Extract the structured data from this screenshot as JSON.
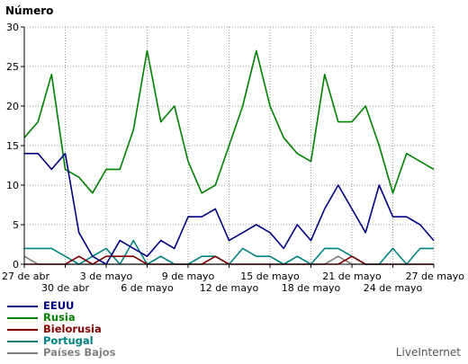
{
  "chart_data": {
    "type": "line",
    "ylabel": "Número",
    "ylim": [
      0,
      30
    ],
    "yticks": [
      0,
      5,
      10,
      15,
      20,
      25,
      30
    ],
    "grid": true,
    "legend_position": "bottom-left",
    "x": [
      "27 de abr",
      "28 de abr",
      "29 de abr",
      "30 de abr",
      "1 de mayo",
      "2 de mayo",
      "3 de mayo",
      "4 de mayo",
      "5 de mayo",
      "6 de mayo",
      "7 de mayo",
      "8 de mayo",
      "9 de mayo",
      "10 de mayo",
      "11 de mayo",
      "12 de mayo",
      "13 de mayo",
      "14 de mayo",
      "15 de mayo",
      "16 de mayo",
      "17 de mayo",
      "18 de mayo",
      "19 de mayo",
      "20 de mayo",
      "21 de mayo",
      "22 de mayo",
      "23 de mayo",
      "24 de mayo",
      "25 de mayo",
      "26 de mayo",
      "27 de mayo"
    ],
    "xtick_labels": [
      {
        "index": 0,
        "label": "27 de abr",
        "row": 1
      },
      {
        "index": 3,
        "label": "30 de abr",
        "row": 2
      },
      {
        "index": 6,
        "label": "3 de mayo",
        "row": 1
      },
      {
        "index": 9,
        "label": "6 de mayo",
        "row": 2
      },
      {
        "index": 12,
        "label": "9 de mayo",
        "row": 1
      },
      {
        "index": 15,
        "label": "12 de mayo",
        "row": 2
      },
      {
        "index": 18,
        "label": "15 de mayo",
        "row": 1
      },
      {
        "index": 21,
        "label": "18 de mayo",
        "row": 2
      },
      {
        "index": 24,
        "label": "21 de mayo",
        "row": 1
      },
      {
        "index": 27,
        "label": "24 de mayo",
        "row": 2
      },
      {
        "index": 30,
        "label": "27 de mayo",
        "row": 1
      }
    ],
    "series": [
      {
        "name": "EEUU",
        "color": "#000080",
        "values": [
          14,
          14,
          12,
          14,
          4,
          1,
          0,
          3,
          2,
          1,
          3,
          2,
          6,
          6,
          7,
          3,
          4,
          5,
          4,
          2,
          5,
          3,
          7,
          10,
          7,
          4,
          10,
          6,
          6,
          5,
          3
        ]
      },
      {
        "name": "Rusia",
        "color": "#008000",
        "values": [
          16,
          18,
          24,
          12,
          11,
          9,
          12,
          12,
          17,
          27,
          18,
          20,
          13,
          9,
          10,
          15,
          20,
          27,
          20,
          16,
          14,
          13,
          24,
          18,
          18,
          20,
          15,
          9,
          14,
          13,
          12
        ]
      },
      {
        "name": "Bielorusia",
        "color": "#800000",
        "values": [
          0,
          0,
          0,
          0,
          1,
          0,
          1,
          1,
          1,
          0,
          0,
          0,
          0,
          0,
          1,
          0,
          0,
          0,
          0,
          0,
          0,
          0,
          0,
          0,
          1,
          0,
          0,
          0,
          0,
          0,
          0
        ]
      },
      {
        "name": "Portugal",
        "color": "#008080",
        "values": [
          2,
          2,
          2,
          1,
          0,
          1,
          2,
          0,
          3,
          0,
          1,
          0,
          0,
          1,
          1,
          0,
          2,
          1,
          1,
          0,
          1,
          0,
          2,
          2,
          1,
          0,
          0,
          2,
          0,
          2,
          2
        ]
      },
      {
        "name": "Países Bajos",
        "color": "#808080",
        "values": [
          1,
          0,
          0,
          0,
          0,
          0,
          0,
          0,
          0,
          0,
          0,
          0,
          0,
          0,
          0,
          0,
          0,
          0,
          0,
          0,
          0,
          0,
          0,
          1,
          0,
          0,
          0,
          0,
          0,
          0,
          0
        ]
      }
    ]
  },
  "footer": {
    "brand": "LiveInternet"
  }
}
